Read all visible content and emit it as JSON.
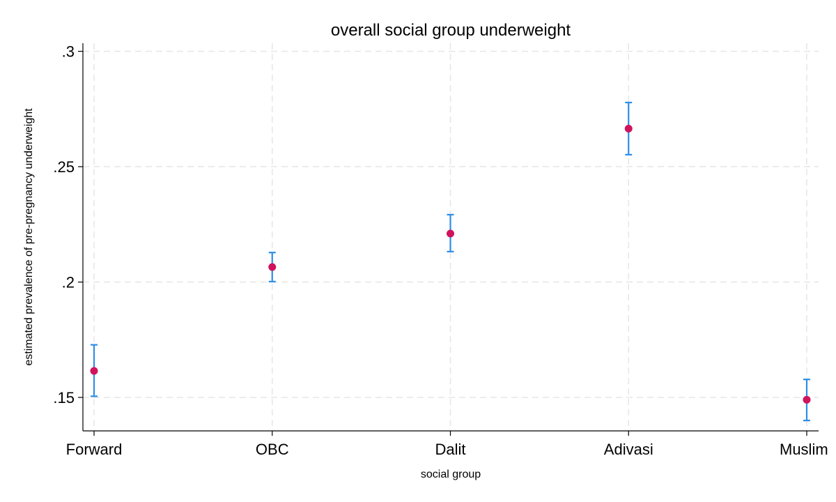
{
  "chart_data": {
    "type": "scatter",
    "title": "overall social group underweight",
    "xlabel": "social group",
    "ylabel": "estimated prevalence of pre-pregnancy underweight",
    "categories": [
      "Forward",
      "OBC",
      "Dalit",
      "Adivasi",
      "Muslim"
    ],
    "series": [
      {
        "values": [
          0.1615,
          0.2065,
          0.221,
          0.2665,
          0.149
        ],
        "ci_low": [
          0.1505,
          0.2002,
          0.2132,
          0.2552,
          0.14
        ],
        "ci_high": [
          0.1728,
          0.2128,
          0.2292,
          0.2778,
          0.1578
        ]
      }
    ],
    "y_ticks": [
      0.15,
      0.2,
      0.25,
      0.3
    ],
    "y_tick_labels": [
      ".15",
      ".2",
      ".25",
      ".3"
    ],
    "ylim": [
      0.1355,
      0.3035
    ],
    "grid": true,
    "colors": {
      "point": "#d0135c",
      "error_bar": "#2e8de6",
      "grid": "#e6e6e6"
    }
  }
}
